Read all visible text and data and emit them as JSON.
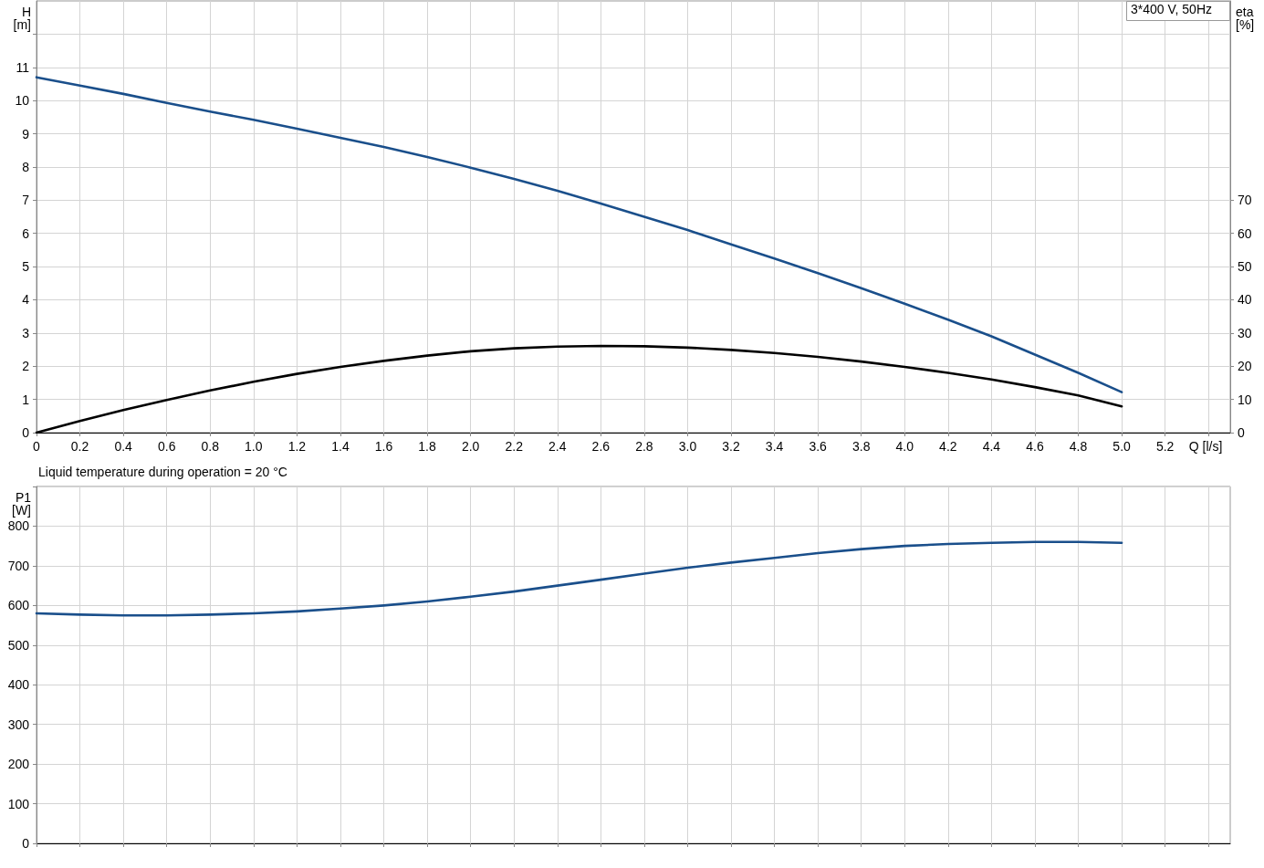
{
  "chart_data": [
    {
      "type": "line",
      "xlabel": "Q [l/s]",
      "ylabel": "H [m]",
      "y2label": "eta [%]",
      "annotations": [
        "3*400 V, 50Hz"
      ],
      "x": [
        0,
        0.2,
        0.4,
        0.6,
        0.8,
        1.0,
        1.2,
        1.4,
        1.6,
        1.8,
        2.0,
        2.2,
        2.4,
        2.6,
        2.8,
        3.0,
        3.2,
        3.4,
        3.6,
        3.8,
        4.0,
        4.2,
        4.4,
        4.6,
        4.8,
        5.0
      ],
      "series": [
        {
          "color": "#1a4f8b",
          "values": [
            10.7,
            10.45,
            10.2,
            9.93,
            9.67,
            9.42,
            9.15,
            8.88,
            8.6,
            8.3,
            7.98,
            7.64,
            7.28,
            6.9,
            6.5,
            6.1,
            5.67,
            5.24,
            4.8,
            4.35,
            3.88,
            3.4,
            2.9,
            2.35,
            1.8,
            1.22
          ]
        },
        {
          "color": "#000000",
          "axis": "y2",
          "values": [
            0,
            3.5,
            6.8,
            9.8,
            12.7,
            15.3,
            17.7,
            19.8,
            21.6,
            23.2,
            24.5,
            25.4,
            25.9,
            26.1,
            26.0,
            25.6,
            24.9,
            24.0,
            22.8,
            21.4,
            19.8,
            18.0,
            16.0,
            13.7,
            11.2,
            7.9
          ]
        }
      ],
      "xlim": [
        0,
        5.5
      ],
      "xticks": [
        0,
        0.2,
        0.4,
        0.6,
        0.8,
        {
          "value": 1,
          "label": "1.0"
        },
        1.2,
        1.4,
        1.6,
        1.8,
        {
          "value": 2,
          "label": "2.0"
        },
        2.2,
        2.4,
        2.6,
        2.8,
        {
          "value": 3,
          "label": "3.0"
        },
        3.2,
        3.4,
        3.6,
        3.8,
        {
          "value": 4,
          "label": "4.0"
        },
        4.2,
        4.4,
        4.6,
        4.8,
        {
          "value": 5,
          "label": "5.0"
        },
        5.2,
        {
          "value": 5.4,
          "label": null
        }
      ],
      "ylim": [
        0,
        13
      ],
      "yticks": [
        0,
        1,
        2,
        3,
        4,
        5,
        6,
        7,
        8,
        9,
        10,
        11,
        {
          "value": 12,
          "label": null
        }
      ],
      "y2lim": [
        0,
        130
      ],
      "y2ticks": [
        0,
        10,
        20,
        30,
        40,
        50,
        60,
        70
      ],
      "grid": true,
      "marker": "none",
      "line_style": "solid"
    },
    {
      "type": "line",
      "title": "Liquid temperature during operation = 20 °C",
      "ylabel": "P1 [W]",
      "x": [
        0,
        0.2,
        0.4,
        0.6,
        0.8,
        1.0,
        1.2,
        1.4,
        1.6,
        1.8,
        2.0,
        2.2,
        2.4,
        2.6,
        2.8,
        3.0,
        3.2,
        3.4,
        3.6,
        3.8,
        4.0,
        4.2,
        4.4,
        4.6,
        4.8,
        5.0
      ],
      "series": [
        {
          "color": "#1a4f8b",
          "values": [
            580,
            577,
            575,
            575,
            577,
            580,
            585,
            592,
            600,
            610,
            622,
            635,
            650,
            665,
            680,
            695,
            708,
            720,
            732,
            742,
            750,
            755,
            758,
            760,
            760,
            758
          ]
        }
      ],
      "xlim": [
        0,
        5.5
      ],
      "xticks": [
        0,
        0.2,
        0.4,
        0.6,
        0.8,
        1,
        1.2,
        1.4,
        1.6,
        1.8,
        2,
        2.2,
        2.4,
        2.6,
        2.8,
        3,
        3.2,
        3.4,
        3.6,
        3.8,
        4,
        4.2,
        4.4,
        4.6,
        4.8,
        5,
        5.2,
        5.4
      ],
      "ylim": [
        0,
        900
      ],
      "yticks": [
        0,
        100,
        200,
        300,
        400,
        500,
        600,
        700,
        800,
        {
          "value": 900,
          "label": null
        }
      ],
      "tick_labels": "y",
      "grid": true,
      "marker": "none",
      "line_style": "solid"
    }
  ]
}
